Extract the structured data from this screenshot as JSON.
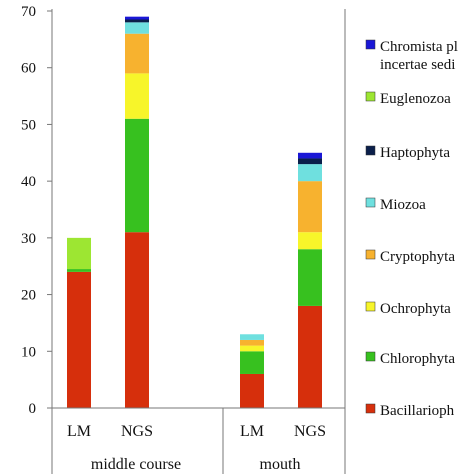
{
  "chart_data": {
    "type": "bar",
    "stacked": true,
    "ylim": [
      0,
      70
    ],
    "yticks": [
      0,
      10,
      20,
      30,
      40,
      50,
      60,
      70
    ],
    "groups": [
      "middle course",
      "mouth"
    ],
    "categories": [
      {
        "label": "LM",
        "group": "middle course"
      },
      {
        "label": "NGS",
        "group": "middle course"
      },
      {
        "label": "LM",
        "group": "mouth"
      },
      {
        "label": "NGS",
        "group": "mouth"
      }
    ],
    "series": [
      {
        "name": "Bacillarioph",
        "color": "#d62f0c",
        "values": [
          24,
          31,
          6,
          18
        ]
      },
      {
        "name": "Chlorophyta",
        "color": "#37c11f",
        "values": [
          0.5,
          20,
          4,
          10
        ]
      },
      {
        "name": "Ochrophyta",
        "color": "#f7f52a",
        "values": [
          0,
          8,
          1,
          3
        ]
      },
      {
        "name": "Cryptophyta",
        "color": "#f7b22f",
        "values": [
          0,
          7,
          1,
          9
        ]
      },
      {
        "name": "Miozoa",
        "color": "#6fe0df",
        "values": [
          0,
          2,
          1,
          3
        ]
      },
      {
        "name": "Haptophyta",
        "color": "#0b1f4a",
        "values": [
          0,
          0.5,
          0,
          1
        ]
      },
      {
        "name": "Euglenozoa",
        "color": "#9de632",
        "values": [
          5.5,
          0,
          0,
          0
        ]
      },
      {
        "name": "Chromista pl incertae sedi",
        "color": "#1a17d6",
        "values": [
          0,
          0.5,
          0,
          1
        ]
      }
    ],
    "legend_order": [
      "Chromista pl incertae sedi",
      "Euglenozoa",
      "Haptophyta",
      "Miozoa",
      "Cryptophyta",
      "Ochrophyta",
      "Chlorophyta",
      "Bacillarioph"
    ],
    "legend_lines": {
      "Chromista pl incertae sedi": [
        "Chromista pl",
        "incertae sedi"
      ]
    },
    "legend_placement": "right",
    "grid": false,
    "title": "",
    "xlabel": "",
    "ylabel": ""
  }
}
